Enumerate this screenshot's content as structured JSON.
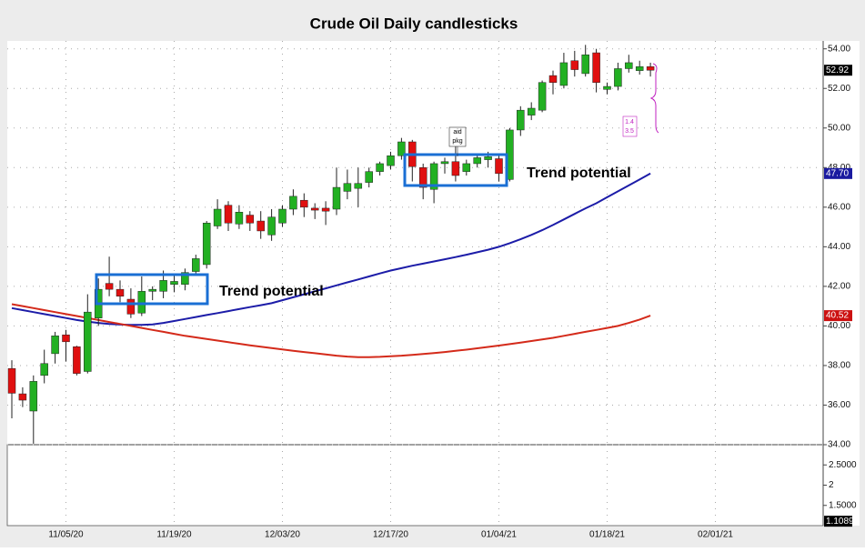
{
  "chart_data": {
    "type": "candlestick",
    "title": "Crude Oil Daily candlesticks",
    "categories": [
      null,
      null,
      null,
      null,
      null,
      "11/05/20",
      null,
      null,
      null,
      null,
      null,
      null,
      null,
      null,
      null,
      "11/19/20",
      null,
      null,
      null,
      null,
      null,
      null,
      null,
      null,
      null,
      "12/03/20",
      null,
      null,
      null,
      null,
      null,
      null,
      null,
      null,
      null,
      "12/17/20",
      null,
      null,
      null,
      null,
      null,
      null,
      null,
      null,
      null,
      "01/04/21",
      null,
      null,
      null,
      null,
      null,
      null,
      null,
      null,
      null,
      "01/18/21",
      null,
      null,
      null,
      null,
      null,
      null,
      null,
      null,
      null,
      "02/01/21"
    ],
    "open": [
      37.85,
      36.57,
      35.7,
      37.5,
      38.6,
      39.55,
      38.95,
      37.7,
      40.4,
      42.15,
      41.85,
      41.35,
      40.65,
      41.75,
      41.75,
      42.1,
      42.1,
      42.75,
      43.1,
      45.05,
      46.1,
      45.15,
      45.6,
      45.3,
      44.6,
      45.2,
      45.9,
      46.35,
      45.95,
      45.95,
      45.9,
      46.8,
      46.95,
      47.25,
      47.8,
      48.1,
      48.6,
      49.3,
      48.0,
      46.9,
      48.2,
      48.3,
      47.8,
      48.2,
      48.4,
      48.45,
      47.4,
      49.9,
      50.65,
      50.9,
      52.65,
      52.15,
      53.4,
      52.75,
      53.8,
      51.95,
      52.1,
      53.0,
      52.9,
      53.1,
      null,
      null,
      null,
      null,
      null,
      null
    ],
    "high": [
      38.27,
      36.9,
      37.5,
      38.8,
      39.7,
      39.8,
      39.0,
      41.6,
      42.4,
      43.5,
      42.3,
      41.9,
      42.5,
      42.0,
      42.8,
      42.6,
      42.9,
      43.6,
      45.3,
      46.4,
      46.3,
      46.1,
      45.8,
      45.8,
      45.9,
      46.1,
      46.9,
      46.7,
      46.2,
      46.3,
      48.0,
      47.9,
      48.0,
      48.0,
      48.3,
      48.8,
      49.5,
      49.4,
      48.2,
      48.3,
      48.5,
      49.5,
      48.4,
      48.7,
      48.8,
      48.6,
      50.0,
      51.1,
      51.3,
      52.4,
      52.9,
      53.8,
      53.9,
      54.2,
      54.0,
      52.3,
      53.3,
      53.7,
      53.4,
      53.3,
      null,
      null,
      null,
      null,
      null,
      null
    ],
    "low": [
      35.33,
      35.9,
      34.05,
      37.1,
      38.1,
      38.2,
      37.5,
      37.6,
      40.0,
      41.5,
      41.2,
      40.4,
      40.5,
      41.3,
      41.4,
      41.7,
      41.8,
      42.6,
      42.9,
      44.9,
      44.8,
      44.9,
      44.8,
      44.4,
      44.3,
      45.0,
      45.6,
      45.5,
      45.4,
      45.1,
      45.6,
      46.4,
      46.0,
      47.0,
      47.6,
      47.9,
      48.4,
      47.3,
      46.4,
      46.2,
      47.7,
      47.3,
      47.6,
      48.0,
      48.0,
      47.3,
      47.3,
      49.6,
      50.4,
      50.8,
      51.7,
      52.0,
      52.6,
      52.6,
      51.8,
      51.7,
      51.9,
      52.8,
      52.7,
      52.6,
      null,
      null,
      null,
      null,
      null,
      null
    ],
    "close": [
      36.6,
      36.25,
      37.2,
      38.1,
      39.5,
      39.2,
      37.6,
      40.7,
      41.85,
      41.85,
      41.5,
      40.6,
      41.75,
      41.85,
      42.3,
      42.25,
      42.7,
      43.4,
      45.2,
      45.9,
      45.2,
      45.75,
      45.2,
      44.8,
      45.5,
      45.9,
      46.55,
      46.0,
      45.85,
      45.8,
      47.0,
      47.2,
      47.2,
      47.8,
      48.2,
      48.6,
      49.3,
      48.05,
      47.0,
      48.2,
      48.3,
      47.6,
      48.2,
      48.5,
      48.55,
      47.7,
      49.9,
      50.9,
      51.0,
      52.3,
      52.3,
      53.3,
      52.95,
      53.7,
      52.3,
      52.1,
      53.0,
      53.3,
      53.1,
      52.92,
      null,
      null,
      null,
      null,
      null,
      null
    ],
    "up_color": "#22b022",
    "down_color": "#e01010",
    "lines": [
      {
        "color": "#1c1ca8",
        "values": [
          40.9,
          40.8,
          40.7,
          40.6,
          40.5,
          40.4,
          40.3,
          40.22,
          40.15,
          40.1,
          40.07,
          40.05,
          40.05,
          40.08,
          40.15,
          40.25,
          40.35,
          40.45,
          40.55,
          40.65,
          40.75,
          40.85,
          40.95,
          41.05,
          41.15,
          41.3,
          41.45,
          41.6,
          41.75,
          41.9,
          42.05,
          42.2,
          42.35,
          42.5,
          42.65,
          42.8,
          42.92,
          43.04,
          43.15,
          43.26,
          43.37,
          43.48,
          43.6,
          43.72,
          43.85,
          44.0,
          44.18,
          44.38,
          44.6,
          44.84,
          45.1,
          45.38,
          45.66,
          45.94,
          46.2,
          46.5,
          46.8,
          47.1,
          47.4,
          47.7,
          null,
          null,
          null,
          null,
          null,
          null
        ]
      },
      {
        "color": "#d42a1a",
        "values": [
          41.1,
          41.0,
          40.9,
          40.8,
          40.7,
          40.6,
          40.5,
          40.4,
          40.3,
          40.2,
          40.1,
          40.0,
          39.9,
          39.8,
          39.7,
          39.6,
          39.5,
          39.42,
          39.34,
          39.26,
          39.18,
          39.1,
          39.02,
          38.95,
          38.88,
          38.81,
          38.74,
          38.68,
          38.62,
          38.56,
          38.5,
          38.45,
          38.42,
          38.42,
          38.44,
          38.47,
          38.5,
          38.54,
          38.58,
          38.63,
          38.68,
          38.74,
          38.8,
          38.87,
          38.94,
          39.01,
          39.08,
          39.16,
          39.24,
          39.32,
          39.4,
          39.5,
          39.6,
          39.7,
          39.8,
          39.9,
          40.0,
          40.15,
          40.32,
          40.52,
          null,
          null,
          null,
          null,
          null,
          null
        ]
      }
    ],
    "ylim": [
      34,
      54.4
    ],
    "yticks": [
      {
        "value": 34,
        "label": "34.00"
      },
      {
        "value": 36,
        "label": "36.00"
      },
      {
        "value": 38,
        "label": "38.00"
      },
      {
        "value": 40,
        "label": "40.00"
      },
      {
        "value": 42,
        "label": "42.00"
      },
      {
        "value": 44,
        "label": "44.00"
      },
      {
        "value": 46,
        "label": "46.00"
      },
      {
        "value": 48,
        "label": "48.00"
      },
      {
        "value": 50,
        "label": "50.00"
      },
      {
        "value": 52,
        "label": "52.00"
      },
      {
        "value": 54,
        "label": "54.00"
      }
    ],
    "markers": [
      {
        "value": 52.92,
        "label": "52.92",
        "color": "#000000"
      },
      {
        "value": 47.7,
        "label": "47.70",
        "color": "#1a1aa0"
      },
      {
        "value": 40.52,
        "label": "40.52",
        "color": "#cc1111"
      }
    ],
    "lower_panel": {
      "ylim": [
        1.0,
        3.0
      ],
      "yticks": [
        {
          "value": 2.5,
          "label": "2.5000"
        },
        2,
        {
          "value": 1.5,
          "label": "1.5000"
        }
      ],
      "markers": [
        {
          "value": 1.1089,
          "label": "1.1089",
          "color": "#000000"
        }
      ]
    },
    "grid": true,
    "annotations": [
      "Trend potential",
      "Trend potential",
      "aid",
      "pkg",
      "1.4",
      "3.5"
    ]
  }
}
